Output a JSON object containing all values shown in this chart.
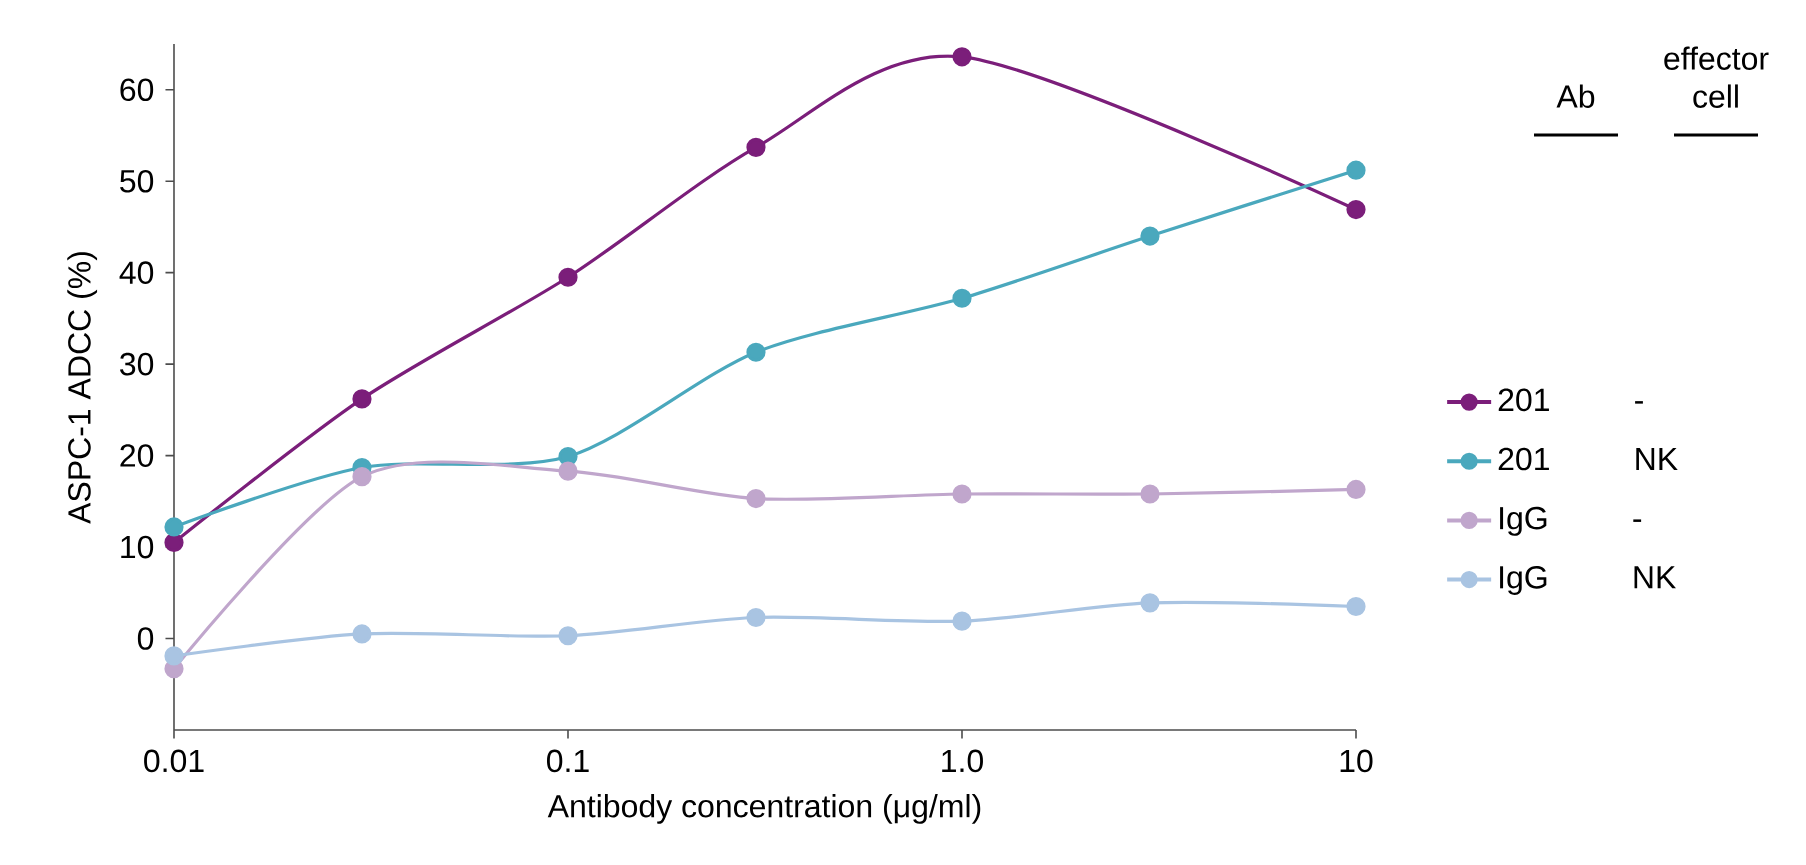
{
  "chart_data": {
    "type": "line",
    "xlabel": "Antibody concentration (μg/ml)",
    "ylabel": "ASPC-1 ADCC (%)",
    "log": "x",
    "xlim": [
      0.01,
      10
    ],
    "ylim": [
      -10,
      65
    ],
    "xticks": [
      0.01,
      0.1,
      {
        "value": 1,
        "label": "1.0"
      },
      10
    ],
    "yticks": [
      0,
      10,
      20,
      30,
      40,
      50,
      60
    ],
    "grid": false,
    "legend": "right",
    "marker": "circle",
    "line_style": "solid",
    "annotations": [
      "Ab",
      "effector cell"
    ],
    "x": [
      0.01,
      0.03,
      0.1,
      0.3,
      1,
      3,
      10
    ],
    "series": [
      {
        "name": "201 -",
        "color": "#7b1e7a",
        "x": [
          0.01,
          0.03,
          0.1,
          0.3,
          1,
          10
        ],
        "values": [
          10.5,
          26.2,
          39.5,
          53.7,
          63.6,
          46.9
        ]
      },
      {
        "name": "201 NK",
        "color": "#4aa8bd",
        "values": [
          12.2,
          18.7,
          19.9,
          31.3,
          37.2,
          44.0,
          51.2
        ]
      },
      {
        "name": "IgG -",
        "color": "#c0a6cc",
        "values": [
          -3.3,
          17.7,
          18.3,
          15.3,
          15.8,
          15.8,
          16.3
        ]
      },
      {
        "name": "IgG NK",
        "color": "#a9c4e2",
        "values": [
          -1.9,
          0.5,
          0.3,
          2.3,
          1.9,
          3.9,
          3.5
        ]
      }
    ]
  }
}
